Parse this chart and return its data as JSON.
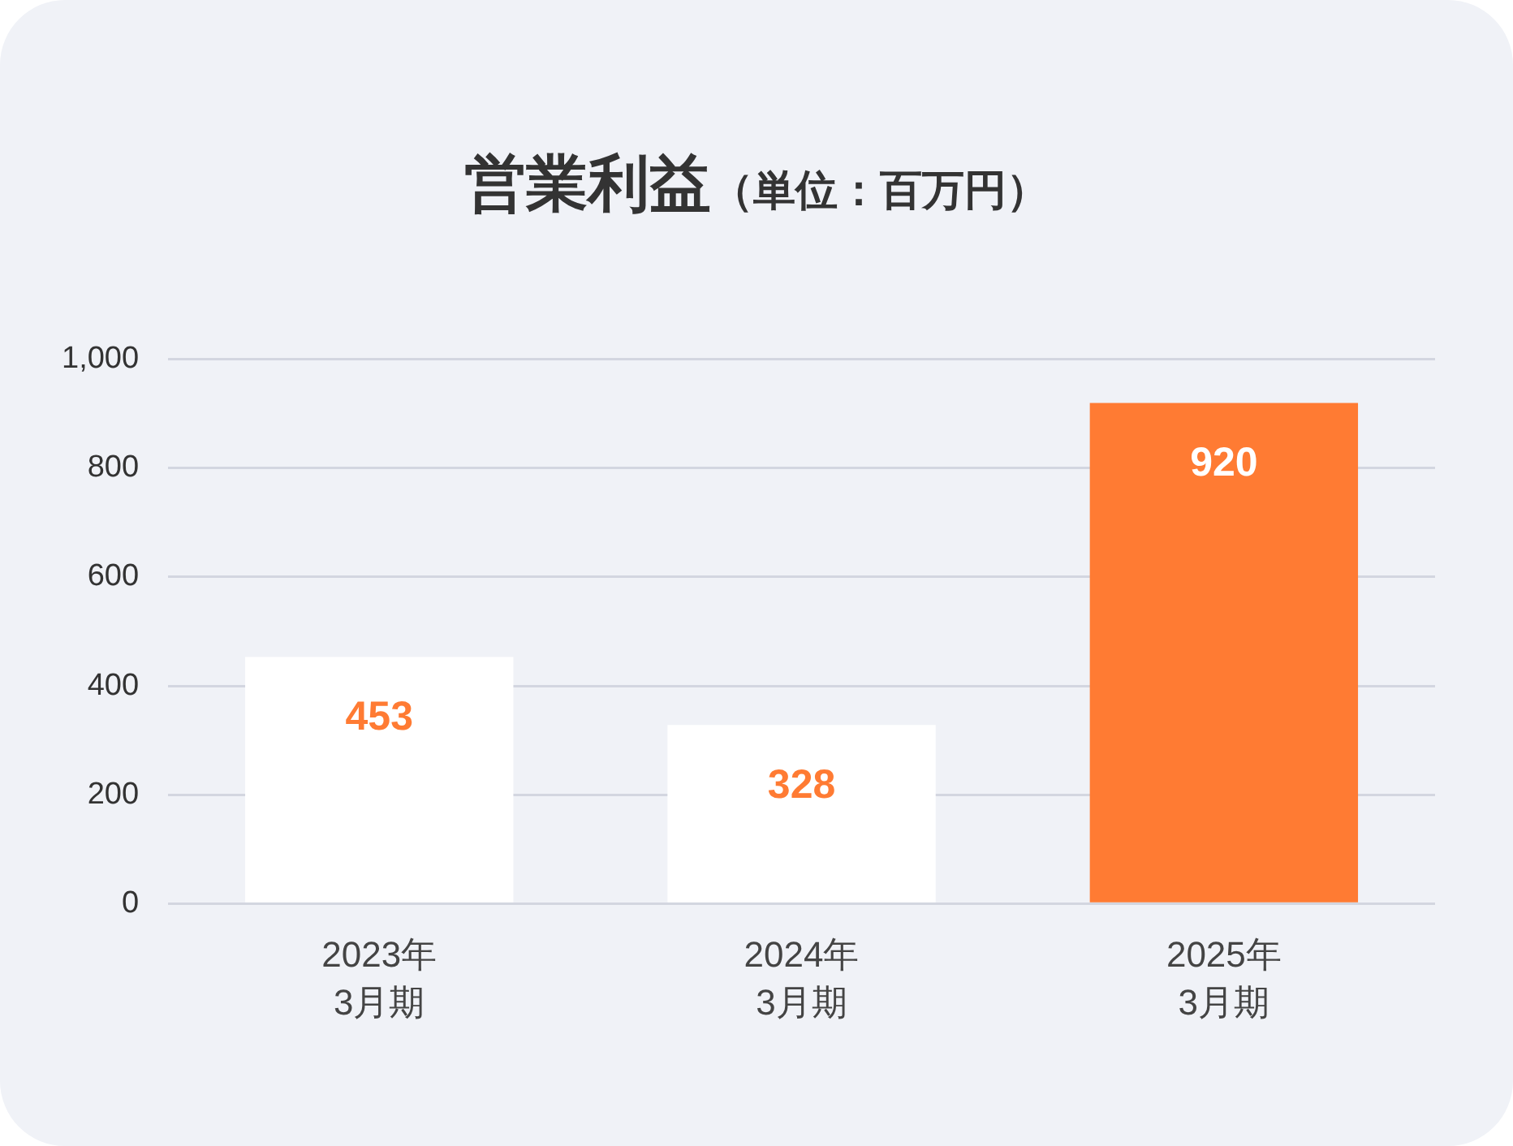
{
  "chart_data": {
    "type": "bar",
    "title": "営業利益",
    "subtitle": "（単位：百万円）",
    "categories": [
      "2023年\n3月期",
      "2024年\n3月期",
      "2025年\n3月期"
    ],
    "values": [
      453,
      328,
      920
    ],
    "colors": [
      "#ffffff",
      "#ffffff",
      "#ff7b33"
    ],
    "ylim": [
      0,
      1000
    ],
    "yticks": [
      0,
      200,
      400,
      600,
      800,
      {
        "value": 1000,
        "label": "1,000"
      }
    ],
    "grid": "y",
    "data_labels": true,
    "legend": false
  }
}
